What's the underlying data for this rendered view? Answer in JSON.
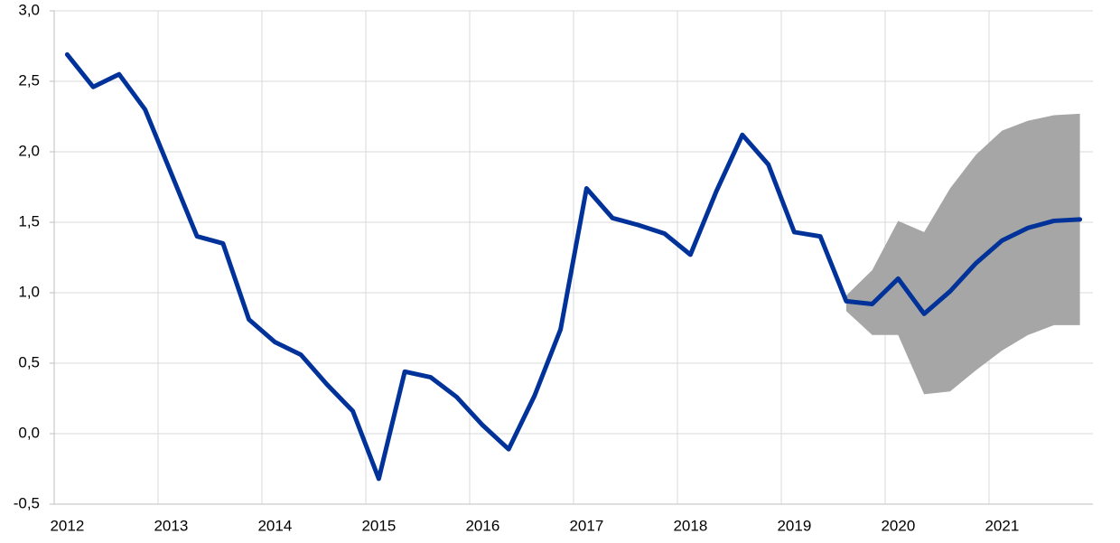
{
  "chart_data": {
    "type": "line",
    "categories": [
      "2012",
      null,
      null,
      null,
      "2013",
      null,
      null,
      null,
      "2014",
      null,
      null,
      null,
      "2015",
      null,
      null,
      null,
      "2016",
      null,
      null,
      null,
      "2017",
      null,
      null,
      null,
      "2018",
      null,
      null,
      null,
      "2019",
      null,
      null,
      null,
      "2020",
      null,
      null,
      null,
      "2021",
      null,
      null,
      null
    ],
    "series": [
      {
        "color": "#003299",
        "values": [
          2.69,
          2.46,
          2.55,
          2.3,
          1.85,
          1.4,
          1.35,
          0.81,
          0.65,
          0.56,
          0.35,
          0.16,
          -0.32,
          0.44,
          0.4,
          0.26,
          0.06,
          -0.11,
          0.27,
          0.74,
          1.74,
          1.53,
          1.48,
          1.42,
          1.27,
          1.72,
          2.12,
          1.91,
          1.43,
          1.4,
          0.94,
          0.92,
          1.1,
          0.85,
          1.01,
          1.21,
          1.37,
          1.46,
          1.51,
          1.52
        ]
      }
    ],
    "band": {
      "color": "#a6a6a6",
      "lower": [
        null,
        null,
        null,
        null,
        null,
        null,
        null,
        null,
        null,
        null,
        null,
        null,
        null,
        null,
        null,
        null,
        null,
        null,
        null,
        null,
        null,
        null,
        null,
        null,
        null,
        null,
        null,
        null,
        null,
        null,
        0.87,
        0.7,
        0.7,
        0.28,
        0.3,
        0.45,
        0.59,
        0.7,
        0.77,
        0.77
      ],
      "upper": [
        null,
        null,
        null,
        null,
        null,
        null,
        null,
        null,
        null,
        null,
        null,
        null,
        null,
        null,
        null,
        null,
        null,
        null,
        null,
        null,
        null,
        null,
        null,
        null,
        null,
        null,
        null,
        null,
        null,
        null,
        0.98,
        1.16,
        1.51,
        1.43,
        1.74,
        1.98,
        2.15,
        2.22,
        2.26,
        2.27
      ]
    },
    "ylim": [
      -0.5,
      3.0
    ],
    "yticks": [
      {
        "value": -0.5,
        "label": "-0,5"
      },
      {
        "value": 0,
        "label": "0,0"
      },
      {
        "value": 0.5,
        "label": "0,5"
      },
      {
        "value": 1.0,
        "label": "1,0"
      },
      {
        "value": 1.5,
        "label": "1,5"
      },
      {
        "value": 2.0,
        "label": "2,0"
      },
      {
        "value": 2.5,
        "label": "2,5"
      },
      {
        "value": 3.0,
        "label": "3,0"
      }
    ],
    "grid": true
  }
}
